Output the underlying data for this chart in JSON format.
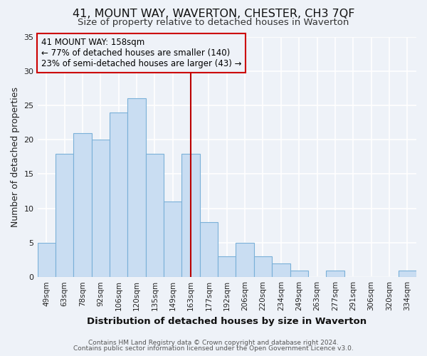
{
  "title": "41, MOUNT WAY, WAVERTON, CHESTER, CH3 7QF",
  "subtitle": "Size of property relative to detached houses in Waverton",
  "xlabel": "Distribution of detached houses by size in Waverton",
  "ylabel": "Number of detached properties",
  "footnote1": "Contains HM Land Registry data © Crown copyright and database right 2024.",
  "footnote2": "Contains public sector information licensed under the Open Government Licence v3.0.",
  "bar_labels": [
    "49sqm",
    "63sqm",
    "78sqm",
    "92sqm",
    "106sqm",
    "120sqm",
    "135sqm",
    "149sqm",
    "163sqm",
    "177sqm",
    "192sqm",
    "206sqm",
    "220sqm",
    "234sqm",
    "249sqm",
    "263sqm",
    "277sqm",
    "291sqm",
    "306sqm",
    "320sqm",
    "334sqm"
  ],
  "bar_heights": [
    5,
    18,
    21,
    20,
    24,
    26,
    18,
    11,
    18,
    8,
    3,
    5,
    3,
    2,
    1,
    0,
    1,
    0,
    0,
    0,
    1
  ],
  "bar_color": "#c9ddf2",
  "bar_edgecolor": "#7ab0d8",
  "ylim": [
    0,
    35
  ],
  "yticks": [
    0,
    5,
    10,
    15,
    20,
    25,
    30,
    35
  ],
  "vline_x": 8.0,
  "vline_color": "#bb0000",
  "annotation_title": "41 MOUNT WAY: 158sqm",
  "annotation_line1": "← 77% of detached houses are smaller (140)",
  "annotation_line2": "23% of semi-detached houses are larger (43) →",
  "annotation_box_edgecolor": "#cc0000",
  "bg_color": "#eef2f8",
  "grid_color": "#ffffff",
  "title_fontsize": 11.5,
  "subtitle_fontsize": 9.5,
  "axis_label_fontsize": 9,
  "tick_fontsize": 7.5,
  "annotation_fontsize": 8.5,
  "footnote_fontsize": 6.5
}
